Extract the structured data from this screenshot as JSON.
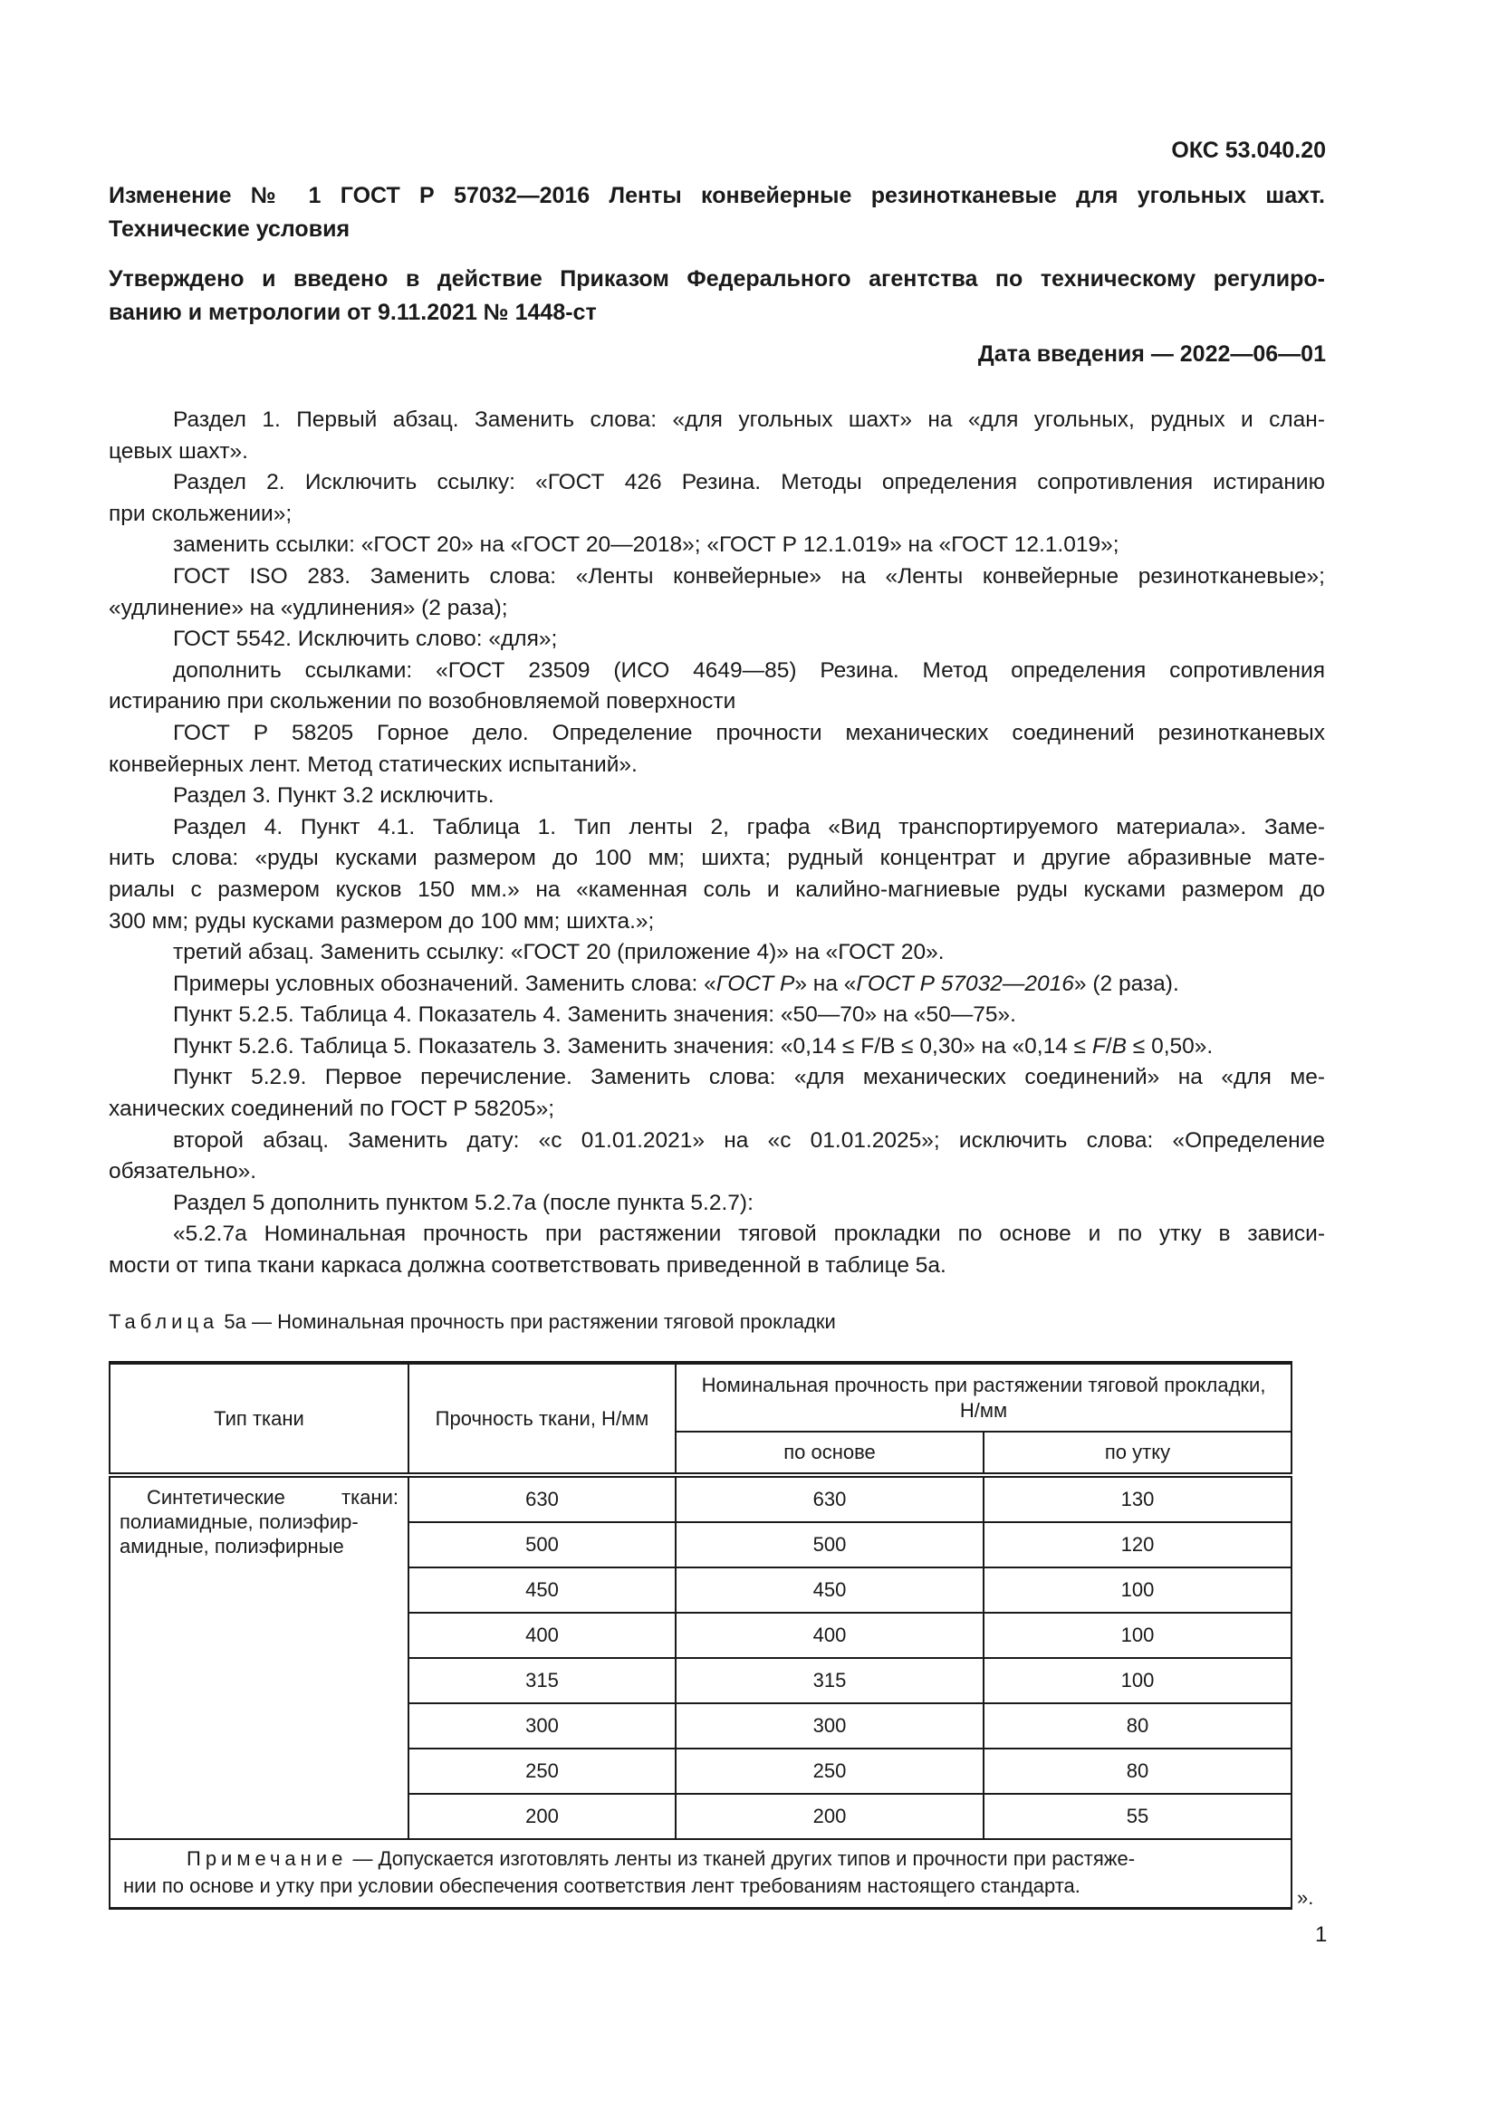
{
  "header": {
    "okc": "ОКС 53.040.20",
    "title_line1": "Изменение № 1 ГОСТ Р 57032—2016 Ленты конвейерные резинотканевые для угольных шахт.",
    "title_line2": "Технические условия",
    "approved_line1": "Утверждено и введено в действие Приказом Федерального агентства по техническому регулиро-",
    "approved_line2": "ванию и метрологии от 9.11.2021 № 1448-ст",
    "date": "Дата введения — 2022—06—01"
  },
  "body_lines": [
    {
      "ind": true,
      "j": true,
      "s": [
        "Раздел 1. Первый абзац. Заменить слова: «для угольных шахт» на «для угольных, рудных и слан-"
      ]
    },
    {
      "ind": false,
      "j": false,
      "s": [
        "цевых шахт»."
      ]
    },
    {
      "ind": true,
      "j": true,
      "s": [
        "Раздел 2. Исключить ссылку: «ГОСТ 426 Резина. Методы определения сопротивления истиранию"
      ]
    },
    {
      "ind": false,
      "j": false,
      "s": [
        "при скольжении»;"
      ]
    },
    {
      "ind": true,
      "j": false,
      "s": [
        "заменить ссылки: «ГОСТ 20» на «ГОСТ 20—2018»; «ГОСТ Р 12.1.019» на «ГОСТ 12.1.019»;"
      ]
    },
    {
      "ind": true,
      "j": true,
      "s": [
        "ГОСТ ISO 283. Заменить слова: «Ленты конвейерные» на «Ленты конвейерные резинотканевые»;"
      ]
    },
    {
      "ind": false,
      "j": false,
      "s": [
        "«удлинение» на «удлинения» (2 раза);"
      ]
    },
    {
      "ind": true,
      "j": false,
      "s": [
        "ГОСТ 5542. Исключить слово: «для»;"
      ]
    },
    {
      "ind": true,
      "j": true,
      "s": [
        "дополнить ссылками: «ГОСТ 23509 (ИСО 4649—85) Резина. Метод определения сопротивления"
      ]
    },
    {
      "ind": false,
      "j": false,
      "s": [
        "истиранию при скольжении по возобновляемой поверхности"
      ]
    },
    {
      "ind": true,
      "j": true,
      "s": [
        "ГОСТ Р 58205 Горное дело. Определение прочности механических соединений резинотканевых"
      ]
    },
    {
      "ind": false,
      "j": false,
      "s": [
        "конвейерных лент. Метод статических испытаний»."
      ]
    },
    {
      "ind": true,
      "j": false,
      "s": [
        "Раздел 3. Пункт 3.2 исключить."
      ]
    },
    {
      "ind": true,
      "j": true,
      "s": [
        "Раздел 4. Пункт 4.1. Таблица 1. Тип ленты 2, графа «Вид транспортируемого материала». Заме-"
      ]
    },
    {
      "ind": false,
      "j": true,
      "s": [
        "нить слова: «руды кусками размером до 100 мм; шихта; рудный концентрат и другие абразивные мате-"
      ]
    },
    {
      "ind": false,
      "j": true,
      "s": [
        "риалы с размером кусков 150 мм.» на «каменная соль и калийно-магниевые руды кусками размером до"
      ]
    },
    {
      "ind": false,
      "j": false,
      "s": [
        "300 мм; руды кусками размером до 100 мм; шихта.»;"
      ]
    },
    {
      "ind": true,
      "j": false,
      "s": [
        "третий абзац. Заменить ссылку: «ГОСТ 20 (приложение 4)» на «ГОСТ 20»."
      ]
    },
    {
      "ind": true,
      "j": false,
      "s": [
        "Примеры условных обозначений. Заменить слова: «",
        "ГОСТ Р",
        "» на «",
        "ГОСТ Р 57032—2016",
        "» (2 раза)."
      ],
      "italic": [
        1,
        3
      ]
    },
    {
      "ind": true,
      "j": false,
      "s": [
        "Пункт 5.2.5. Таблица 4. Показатель 4. Заменить значения: «50—70» на «50—75»."
      ]
    },
    {
      "ind": true,
      "j": false,
      "s": [
        "Пункт 5.2.6. Таблица 5. Показатель 3. Заменить значения: «0,14 ≤ F/B ≤ 0,30» на «0,14 ≤ ",
        "F",
        "/",
        "B",
        " ≤ 0,50»."
      ],
      "italic": [
        1,
        3
      ]
    },
    {
      "ind": true,
      "j": true,
      "s": [
        "Пункт 5.2.9. Первое перечисление. Заменить слова: «для механических соединений» на «для ме-"
      ]
    },
    {
      "ind": false,
      "j": false,
      "s": [
        "ханических соединений по ГОСТ Р 58205»;"
      ]
    },
    {
      "ind": true,
      "j": true,
      "s": [
        "второй абзац. Заменить дату: «с 01.01.2021» на «с 01.01.2025»; исключить слова: «Определение"
      ]
    },
    {
      "ind": false,
      "j": false,
      "s": [
        "обязательно»."
      ]
    },
    {
      "ind": true,
      "j": false,
      "s": [
        "Раздел 5 дополнить пунктом 5.2.7а (после пункта 5.2.7):"
      ]
    },
    {
      "ind": true,
      "j": true,
      "s": [
        "«5.2.7а Номинальная прочность при растяжении тяговой прокладки по основе и по утку в зависи-"
      ]
    },
    {
      "ind": false,
      "j": false,
      "s": [
        "мости от типа ткани каркаса должна соответствовать приведенной в таблице 5а."
      ]
    }
  ],
  "table": {
    "caption_label": "Таблица",
    "caption_text": " 5а — Номинальная прочность при растяжении тяговой прокладки",
    "headers": {
      "type": "Тип ткани",
      "strength": "Прочность ткани, Н/мм",
      "nominal": "Номинальная прочность при растяжении тяговой прокладки, Н/мм",
      "warp": "по основе",
      "weft": "по утку"
    },
    "fabric_type_line1": "Синтетические   ткани:",
    "fabric_type_line2": "полиамидные, полиэфир-",
    "fabric_type_line3": "амидные, полиэфирные",
    "rows": [
      [
        "630",
        "630",
        "130"
      ],
      [
        "500",
        "500",
        "120"
      ],
      [
        "450",
        "450",
        "100"
      ],
      [
        "400",
        "400",
        "100"
      ],
      [
        "315",
        "315",
        "100"
      ],
      [
        "300",
        "300",
        "80"
      ],
      [
        "250",
        "250",
        "80"
      ],
      [
        "200",
        "200",
        "55"
      ]
    ],
    "note_label": "Примечание",
    "note_line1": " — Допускается изготовлять ленты из тканей других типов и прочности при растяже-",
    "note_line2": "нии по основе и утку при условии обеспечения соответствия лент требованиям настоящего стандарта."
  },
  "closing_quote": "».",
  "page_number": "1"
}
